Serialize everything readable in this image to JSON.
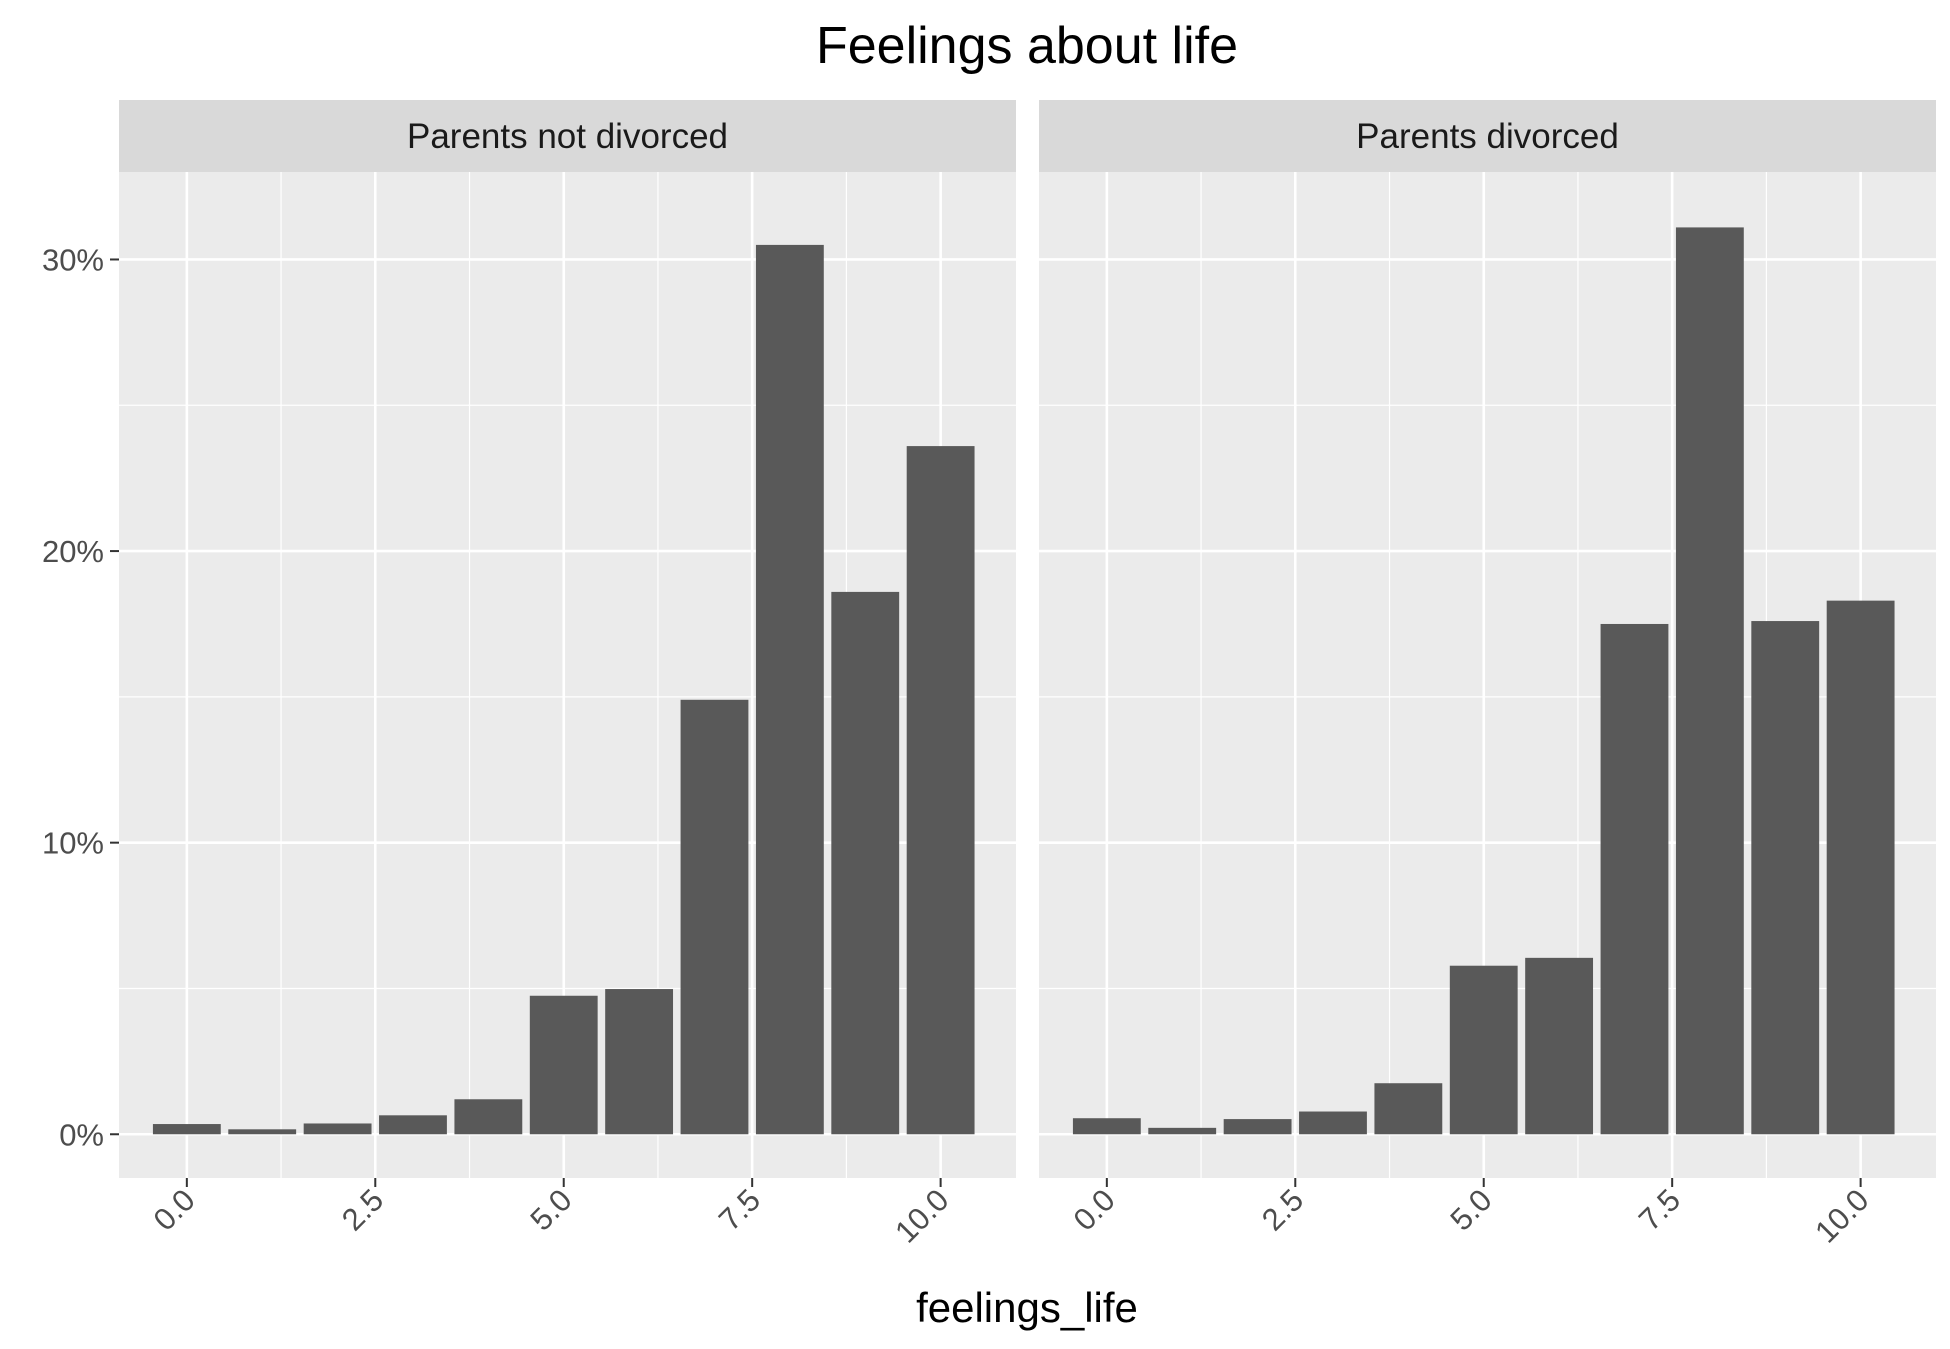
{
  "chart_data": {
    "type": "bar",
    "title": "Feelings about life",
    "xlabel": "feelings_life",
    "ylabel": "",
    "x": [
      0,
      1,
      2,
      3,
      4,
      5,
      6,
      7,
      8,
      9,
      10
    ],
    "x_ticks": [
      0,
      2.5,
      5,
      7.5,
      10
    ],
    "x_tick_labels": [
      "0.0",
      "2.5",
      "5.0",
      "7.5",
      "10.0"
    ],
    "xlim": [
      -0.9,
      11.0
    ],
    "ylim": [
      -1.5,
      33.0
    ],
    "y_ticks": [
      0,
      10,
      20,
      30
    ],
    "y_tick_labels": [
      "0%",
      "10%",
      "20%",
      "30%"
    ],
    "grid": true,
    "facets": [
      {
        "label": "Parents not divorced",
        "values": [
          0.35,
          0.17,
          0.37,
          0.65,
          1.2,
          4.75,
          4.98,
          14.9,
          30.5,
          18.6,
          23.6
        ]
      },
      {
        "label": "Parents divorced",
        "values": [
          0.55,
          0.22,
          0.52,
          0.78,
          1.75,
          5.78,
          6.05,
          17.5,
          31.1,
          17.6,
          18.3
        ]
      }
    ],
    "bar_color": "#595959",
    "panel_color": "#ebebeb",
    "strip_color": "#d9d9d9"
  }
}
